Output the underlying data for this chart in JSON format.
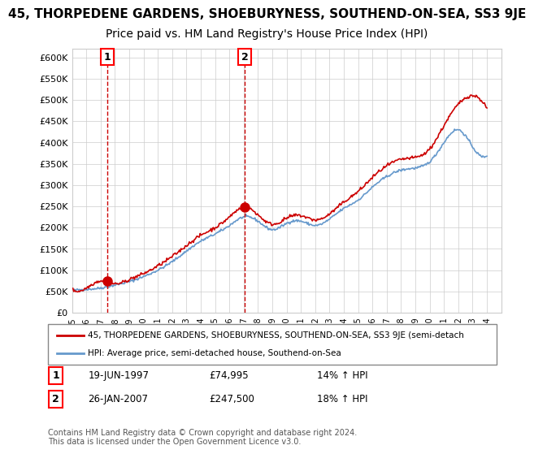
{
  "title": "45, THORPEDENE GARDENS, SHOEBURYNESS, SOUTHEND-ON-SEA, SS3 9JE",
  "subtitle": "Price paid vs. HM Land Registry's House Price Index (HPI)",
  "ylim": [
    0,
    620000
  ],
  "yticks": [
    0,
    50000,
    100000,
    150000,
    200000,
    250000,
    300000,
    350000,
    400000,
    450000,
    500000,
    550000,
    600000
  ],
  "xlim_start": 1995.0,
  "xlim_end": 2025.0,
  "sale1_date": 1997.47,
  "sale1_price": 74995,
  "sale1_label": "1",
  "sale1_info": "19-JUN-1997    £74,995    14% ↑ HPI",
  "sale2_date": 2007.07,
  "sale2_price": 247500,
  "sale2_label": "2",
  "sale2_info": "26-JAN-2007    £247,500    18% ↑ HPI",
  "legend_red": "45, THORPEDENE GARDENS, SHOEBURYNESS, SOUTHEND-ON-SEA, SS3 9JE (semi-detach",
  "legend_blue": "HPI: Average price, semi-detached house, Southend-on-Sea",
  "footer1": "Contains HM Land Registry data © Crown copyright and database right 2024.",
  "footer2": "This data is licensed under the Open Government Licence v3.0.",
  "bg_color": "#ffffff",
  "grid_color": "#cccccc",
  "red_color": "#cc0000",
  "blue_color": "#6699cc",
  "title_fontsize": 11,
  "subtitle_fontsize": 10,
  "hpi_years": [
    1995,
    1996,
    1997,
    1998,
    1999,
    2000,
    2001,
    2002,
    2003,
    2004,
    2005,
    2006,
    2007,
    2008,
    2009,
    2010,
    2011,
    2012,
    2013,
    2014,
    2015,
    2016,
    2017,
    2018,
    2019,
    2020,
    2021,
    2022,
    2023,
    2024
  ],
  "hpi_values": [
    52000,
    55000,
    58000,
    65000,
    73000,
    85000,
    100000,
    120000,
    145000,
    168000,
    185000,
    205000,
    225000,
    215000,
    195000,
    210000,
    215000,
    205000,
    220000,
    245000,
    265000,
    295000,
    320000,
    335000,
    340000,
    355000,
    400000,
    430000,
    390000,
    370000
  ],
  "red_years": [
    1995,
    1996,
    1997,
    1998,
    1999,
    2000,
    2001,
    2002,
    2003,
    2004,
    2005,
    2006,
    2007,
    2008,
    2009,
    2010,
    2011,
    2012,
    2013,
    2014,
    2015,
    2016,
    2017,
    2018,
    2019,
    2020,
    2021,
    2022,
    2023,
    2024
  ],
  "red_values": [
    55000,
    58000,
    75000,
    68000,
    78000,
    92000,
    110000,
    132000,
    158000,
    182000,
    200000,
    225000,
    248000,
    230000,
    208000,
    222000,
    228000,
    218000,
    232000,
    260000,
    285000,
    318000,
    345000,
    360000,
    365000,
    385000,
    440000,
    490000,
    510000,
    480000
  ]
}
